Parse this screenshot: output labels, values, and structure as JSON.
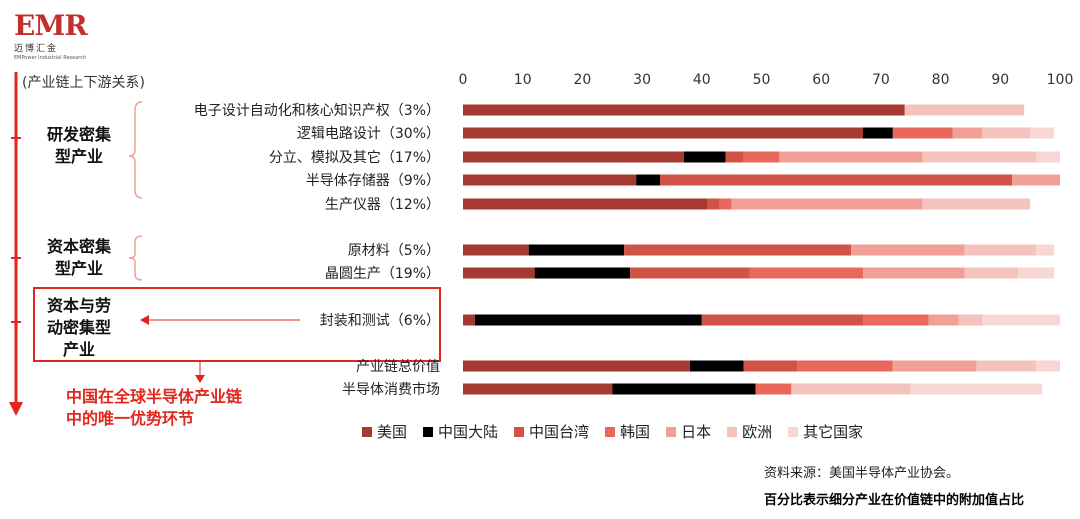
{
  "logo": {
    "mark": "EMR",
    "cn": "迈博汇金",
    "en": "EMPower Industrial Research"
  },
  "chain_label": "(产业链上下游关系)",
  "groups": [
    {
      "label_l1": "研发密集",
      "label_l2": "型产业"
    },
    {
      "label_l1": "资本密集",
      "label_l2": "型产业"
    },
    {
      "label_l1": "资本与劳",
      "label_l2": "动密集型",
      "label_l3": "产业"
    }
  ],
  "note": {
    "line1": "中国在全球半导体产业链",
    "line2": "中的唯一优势环节"
  },
  "source": "资料来源：美国半导体产业协会。",
  "footnote": "百分比表示细分产业在价值链中的附加值占比",
  "colors": [
    "#a63a33",
    "#000000",
    "#cf5346",
    "#e8695c",
    "#f0a096",
    "#f5c3bd",
    "#f7d7d3"
  ],
  "chart_data": {
    "type": "bar",
    "orientation": "horizontal",
    "stacked": true,
    "xlim": [
      0,
      100
    ],
    "xticks": [
      0,
      10,
      20,
      30,
      40,
      50,
      60,
      70,
      80,
      90,
      100
    ],
    "legend_position": "bottom",
    "categories": [
      "电子设计自动化和核心知识产权（3%）",
      "逻辑电路设计（30%）",
      "分立、模拟及其它（17%）",
      "半导体存储器（9%）",
      "生产仪器（12%）",
      "原材料（5%）",
      "晶圆生产（19%）",
      "封装和测试（6%）",
      "产业链总价值",
      "半导体消费市场"
    ],
    "series": [
      {
        "name": "美国",
        "values": [
          74,
          67,
          37,
          29,
          41,
          11,
          12,
          2,
          38,
          25
        ]
      },
      {
        "name": "中国大陆",
        "values": [
          0,
          5,
          7,
          4,
          0,
          16,
          16,
          38,
          9,
          24
        ]
      },
      {
        "name": "中国台湾",
        "values": [
          0,
          0,
          3,
          59,
          2,
          38,
          20,
          27,
          9,
          0
        ]
      },
      {
        "name": "韩国",
        "values": [
          0,
          10,
          6,
          0,
          2,
          0,
          19,
          11,
          16,
          6
        ]
      },
      {
        "name": "日本",
        "values": [
          0,
          5,
          24,
          8,
          32,
          19,
          17,
          5,
          14,
          0
        ]
      },
      {
        "name": "欧洲",
        "values": [
          20,
          8,
          19,
          0,
          18,
          12,
          9,
          4,
          10,
          20
        ]
      },
      {
        "name": "其它国家",
        "values": [
          0,
          4,
          4,
          0,
          0,
          3,
          6,
          13,
          4,
          22
        ]
      }
    ]
  }
}
